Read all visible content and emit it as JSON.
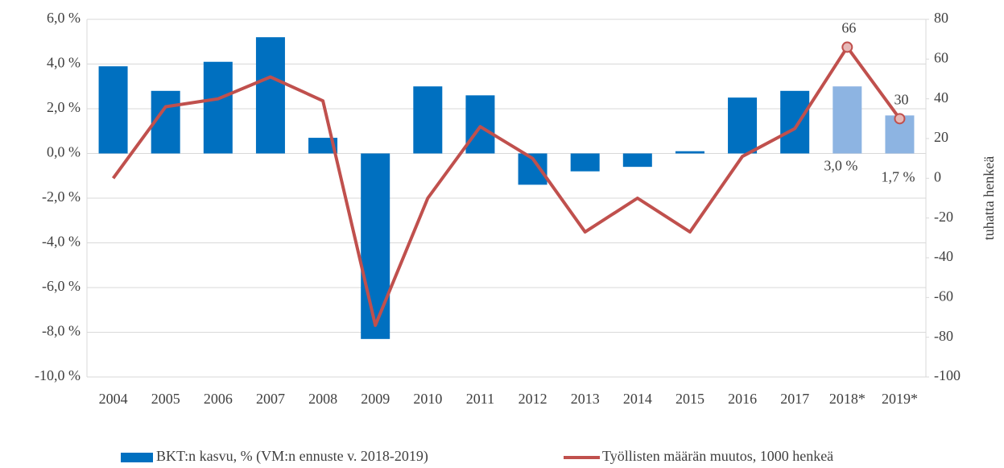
{
  "chart_data": {
    "type": "bar-line",
    "y2label": "tuhatta henkeä",
    "categories": [
      "2004",
      "2005",
      "2006",
      "2007",
      "2008",
      "2009",
      "2010",
      "2011",
      "2012",
      "2013",
      "2014",
      "2015",
      "2016",
      "2017",
      "2018*",
      "2019*"
    ],
    "series": [
      {
        "name": "BKT:n kasvu, % (VM:n ennuste v. 2018-2019)",
        "type": "bar",
        "color": "#0070c0",
        "colors": [
          "#0070c0",
          "#0070c0",
          "#0070c0",
          "#0070c0",
          "#0070c0",
          "#0070c0",
          "#0070c0",
          "#0070c0",
          "#0070c0",
          "#0070c0",
          "#0070c0",
          "#0070c0",
          "#0070c0",
          "#0070c0",
          "#8db4e2",
          "#8db4e2"
        ],
        "values": [
          3.9,
          2.8,
          4.1,
          5.2,
          0.7,
          -8.3,
          3.0,
          2.6,
          -1.4,
          -0.8,
          -0.6,
          0.1,
          2.5,
          2.8,
          3.0,
          1.7
        ],
        "value_labels": [
          null,
          null,
          null,
          null,
          null,
          null,
          null,
          null,
          null,
          null,
          null,
          null,
          null,
          null,
          "3,0 %",
          "1,7 %"
        ]
      },
      {
        "name": "Työllisten määrän muutos, 1000 henkeä",
        "type": "line",
        "axis": "y2",
        "color": "#c0504d",
        "values": [
          0,
          36,
          40,
          51,
          39,
          -74,
          -10,
          26,
          10,
          -27,
          -10,
          -27,
          11,
          25,
          66,
          30
        ],
        "value_labels": [
          null,
          null,
          null,
          null,
          null,
          null,
          null,
          null,
          null,
          null,
          null,
          null,
          null,
          null,
          "66",
          "30"
        ]
      }
    ],
    "ylim": [
      -10,
      6
    ],
    "yticks": [
      {
        "value": -10,
        "label": "-10,0 %"
      },
      {
        "value": -8,
        "label": "-8,0 %"
      },
      {
        "value": -6,
        "label": "-6,0 %"
      },
      {
        "value": -4,
        "label": "-4,0 %"
      },
      {
        "value": -2,
        "label": "-2,0 %"
      },
      {
        "value": 0,
        "label": "0,0 %"
      },
      {
        "value": 2,
        "label": "2,0 %"
      },
      {
        "value": 4,
        "label": "4,0 %"
      },
      {
        "value": 6,
        "label": "6,0 %"
      }
    ],
    "y2lim": [
      -100,
      80
    ],
    "y2ticks": [
      -100,
      -80,
      -60,
      -40,
      -20,
      0,
      20,
      40,
      60,
      80
    ],
    "grid": true
  }
}
